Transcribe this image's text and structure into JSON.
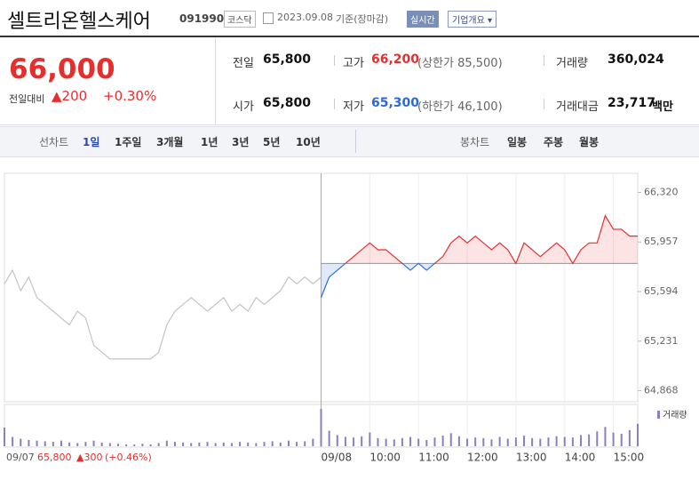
{
  "header": {
    "name": "셀트리온헬스케어",
    "code": "091990",
    "market": "코스닥",
    "date": "2023.09.08",
    "basis": "기준(장마감)",
    "realtime": "실시간",
    "overview": "기업개요"
  },
  "quote": {
    "price": "66,000",
    "change_label": "전일대비",
    "change": "▲200",
    "change_pct": "+0.30%"
  },
  "stats": [
    [
      {
        "label": "전일",
        "value": "65,800"
      },
      {
        "label": "고가",
        "value": "66,200",
        "note": "(상한가 85,500)"
      },
      {
        "label": "거래량",
        "value": "360,024"
      }
    ],
    [
      {
        "label": "시가",
        "value": "65,800"
      },
      {
        "label": "저가",
        "value": "65,300",
        "note": "(하한가 46,100)"
      },
      {
        "label": "거래대금",
        "value": "23,717",
        "unit": "백만"
      }
    ]
  ],
  "tabs": {
    "line_label": "선차트",
    "line_periods": [
      "1일",
      "1주일",
      "3개월",
      "1년",
      "3년",
      "5년",
      "10년"
    ],
    "candle_label": "봉차트",
    "candle_periods": [
      "일봉",
      "주봉",
      "월봉"
    ]
  },
  "footer": {
    "date": "09/07",
    "close": "65,800",
    "change": "▲300",
    "change_pct": "(+0.46%)"
  },
  "chart_data": {
    "type": "line",
    "baseline": 65800,
    "ylim": [
      64800,
      66440
    ],
    "yticks": [
      {
        "value": 66320,
        "label": "66,320"
      },
      {
        "value": 65957,
        "label": "65,957"
      },
      {
        "value": 65594,
        "label": "65,594"
      },
      {
        "value": 65231,
        "label": "65,231"
      },
      {
        "value": 64868,
        "label": "64,868"
      }
    ],
    "xlim": [
      0,
      780
    ],
    "xticks": [
      {
        "value": 390,
        "label": "09/08"
      },
      {
        "value": 450,
        "label": "10:00"
      },
      {
        "value": 510,
        "label": "11:00"
      },
      {
        "value": 570,
        "label": "12:00"
      },
      {
        "value": 630,
        "label": "13:00"
      },
      {
        "value": 690,
        "label": "14:00"
      },
      {
        "value": 750,
        "label": "15:00"
      }
    ],
    "series": [
      {
        "color": "#c4c4c4",
        "x": [
          0,
          10,
          20,
          30,
          40,
          50,
          60,
          70,
          80,
          90,
          100,
          110,
          120,
          130,
          140,
          150,
          160,
          170,
          180,
          190,
          200,
          210,
          220,
          230,
          240,
          250,
          260,
          270,
          280,
          290,
          300,
          310,
          320,
          330,
          340,
          350,
          360,
          370,
          380,
          390
        ],
        "values": [
          65650,
          65750,
          65600,
          65700,
          65550,
          65500,
          65450,
          65400,
          65350,
          65450,
          65400,
          65200,
          65150,
          65100,
          65100,
          65100,
          65100,
          65100,
          65100,
          65150,
          65350,
          65450,
          65500,
          65550,
          65500,
          65450,
          65500,
          65550,
          65450,
          65500,
          65450,
          65550,
          65500,
          65550,
          65600,
          65700,
          65650,
          65700,
          65650,
          65700
        ]
      },
      {
        "color": "#e52e2e",
        "below_color": "#2a6ad6",
        "x": [
          390,
          400,
          410,
          420,
          430,
          440,
          450,
          460,
          470,
          480,
          490,
          500,
          510,
          520,
          530,
          540,
          550,
          560,
          570,
          580,
          590,
          600,
          610,
          620,
          630,
          640,
          650,
          660,
          670,
          680,
          690,
          700,
          710,
          720,
          730,
          740,
          750,
          760,
          770,
          780
        ],
        "values": [
          65550,
          65700,
          65750,
          65800,
          65850,
          65900,
          65950,
          65900,
          65900,
          65850,
          65800,
          65750,
          65800,
          65750,
          65800,
          65850,
          65950,
          66000,
          65950,
          66000,
          65950,
          65900,
          65950,
          65900,
          65800,
          65950,
          65900,
          65850,
          65900,
          65950,
          65900,
          65800,
          65900,
          65950,
          65950,
          66150,
          66050,
          66050,
          66000,
          66000
        ]
      }
    ],
    "volume": {
      "name": "거래량",
      "color": "#8a7fc0",
      "values": [
        3000,
        1500,
        1200,
        1000,
        900,
        800,
        700,
        900,
        600,
        500,
        700,
        900,
        600,
        500,
        400,
        300,
        300,
        400,
        300,
        500,
        900,
        700,
        600,
        500,
        600,
        700,
        500,
        600,
        500,
        700,
        600,
        500,
        700,
        800,
        600,
        900,
        700,
        800,
        1200,
        2000,
        6000,
        2500,
        1800,
        1500,
        1400,
        1600,
        2200,
        1300,
        1200,
        1100,
        1300,
        1500,
        1200,
        1000,
        1400,
        1700,
        2100,
        1600,
        1200,
        1400,
        1300,
        1100,
        1500,
        1200,
        1400,
        1700,
        1300,
        1200,
        1400,
        1600,
        1500,
        1400,
        1800,
        1900,
        2400,
        3100,
        2200,
        2000,
        2600,
        3600
      ]
    }
  }
}
